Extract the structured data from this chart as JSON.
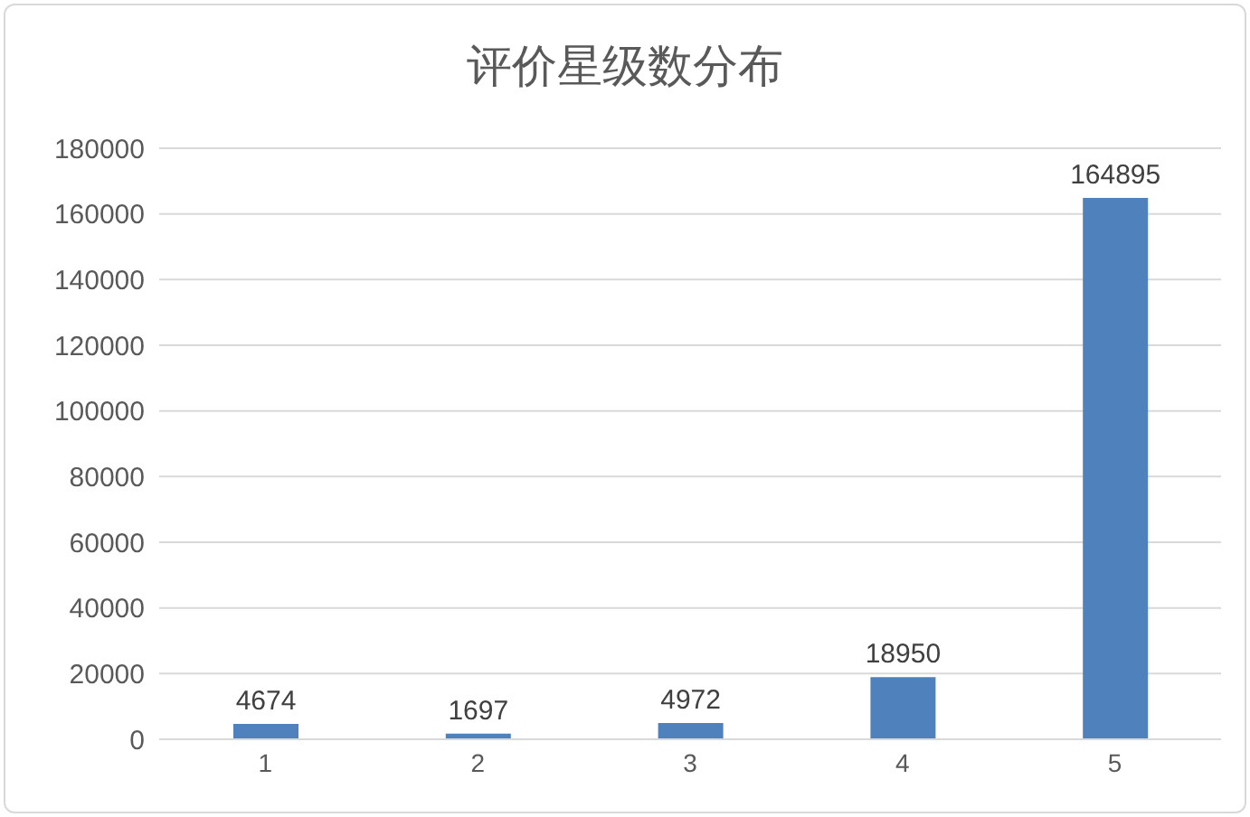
{
  "chart_data": {
    "type": "bar",
    "title": "评价星级数分布",
    "categories": [
      "1",
      "2",
      "3",
      "4",
      "5"
    ],
    "values": [
      4674,
      1697,
      4972,
      18950,
      164895
    ],
    "color": "#4f81bd",
    "ylim": [
      0,
      180000
    ],
    "yticks": [
      0,
      20000,
      40000,
      60000,
      80000,
      100000,
      120000,
      140000,
      160000,
      180000
    ],
    "grid": "y",
    "data_labels": true
  }
}
